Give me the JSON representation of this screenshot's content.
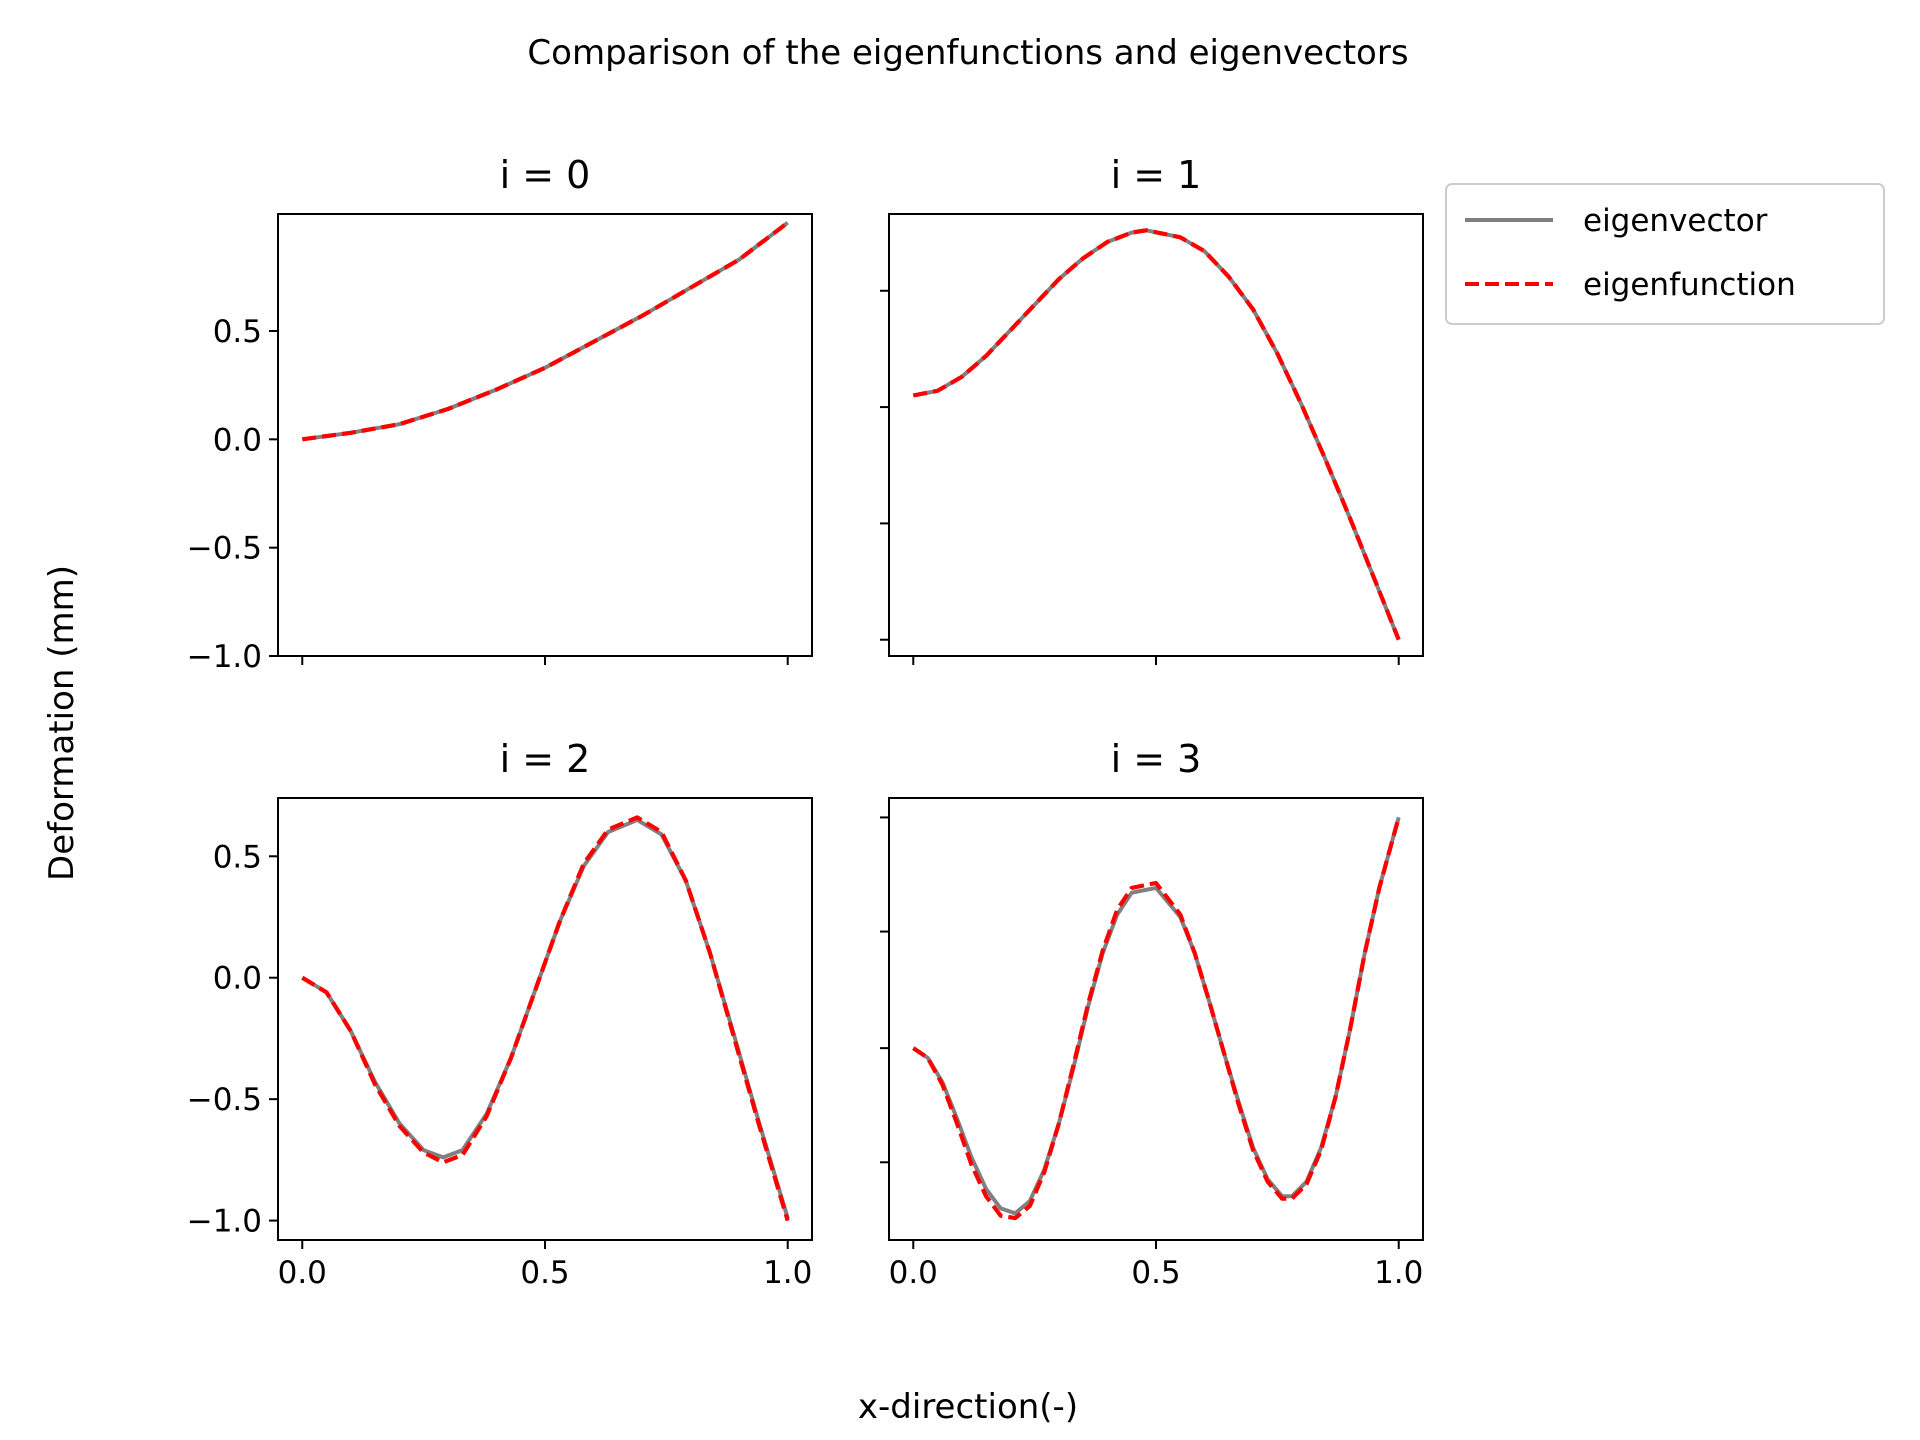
{
  "figure": {
    "suptitle": "Comparison of the eigenfunctions and eigenvectors",
    "xlabel": "x-direction(-)",
    "ylabel": "Deformation (mm)"
  },
  "legend": {
    "position": "upper-right-outside",
    "entries": [
      {
        "label": "eigenvector",
        "color": "#808080",
        "style": "solid"
      },
      {
        "label": "eigenfunction",
        "color": "#ff0000",
        "style": "dashed"
      }
    ]
  },
  "chart_data": [
    {
      "type": "line",
      "title": "i = 0",
      "xlim": [
        -0.05,
        1.05
      ],
      "ylim": [
        -1.0,
        1.04
      ],
      "xticks": [
        "0.0",
        "0.5",
        "1.0"
      ],
      "xtick_values": [
        0,
        0.5,
        1
      ],
      "xtick_labels_shown": false,
      "yticks": [
        "0.5",
        "0.0",
        "−0.5",
        "−1.0"
      ],
      "ytick_values": [
        0.5,
        0,
        -0.5,
        -1.0
      ],
      "ytick_labels_shown": true,
      "series": [
        {
          "name": "eigenvector",
          "color": "#808080",
          "style": "solid",
          "x": [
            0,
            0.1,
            0.2,
            0.3,
            0.4,
            0.5,
            0.6,
            0.7,
            0.8,
            0.9,
            1.0
          ],
          "y": [
            0,
            0.03,
            0.07,
            0.14,
            0.23,
            0.33,
            0.45,
            0.57,
            0.7,
            0.83,
            1.0
          ]
        },
        {
          "name": "eigenfunction",
          "color": "#ff0000",
          "style": "dashed",
          "x": [
            0,
            0.1,
            0.2,
            0.3,
            0.4,
            0.5,
            0.6,
            0.7,
            0.8,
            0.9,
            1.0
          ],
          "y": [
            0,
            0.03,
            0.07,
            0.14,
            0.23,
            0.33,
            0.45,
            0.57,
            0.7,
            0.83,
            1.0
          ]
        }
      ]
    },
    {
      "type": "line",
      "title": "i = 1",
      "xlim": [
        -0.05,
        1.05
      ],
      "ylim": [
        -0.95,
        0.95
      ],
      "xticks": [
        "0.0",
        "0.5",
        "1.0"
      ],
      "xtick_values": [
        0,
        0.5,
        1
      ],
      "xtick_labels_shown": false,
      "yticks": [],
      "ytick_values": [
        0.62,
        0.12,
        -0.38,
        -0.88
      ],
      "ytick_labels_shown": false,
      "series": [
        {
          "name": "eigenvector",
          "color": "#808080",
          "style": "solid",
          "x": [
            0,
            0.05,
            0.1,
            0.15,
            0.2,
            0.25,
            0.3,
            0.35,
            0.4,
            0.45,
            0.48,
            0.55,
            0.6,
            0.65,
            0.7,
            0.75,
            0.8,
            0.85,
            0.9,
            0.95,
            1.0
          ],
          "y": [
            0.17,
            0.19,
            0.25,
            0.34,
            0.45,
            0.56,
            0.67,
            0.76,
            0.83,
            0.87,
            0.88,
            0.85,
            0.79,
            0.68,
            0.54,
            0.35,
            0.13,
            -0.11,
            -0.36,
            -0.62,
            -0.88
          ]
        },
        {
          "name": "eigenfunction",
          "color": "#ff0000",
          "style": "dashed",
          "x": [
            0,
            0.05,
            0.1,
            0.15,
            0.2,
            0.25,
            0.3,
            0.35,
            0.4,
            0.45,
            0.48,
            0.55,
            0.6,
            0.65,
            0.7,
            0.75,
            0.8,
            0.85,
            0.9,
            0.95,
            1.0
          ],
          "y": [
            0.17,
            0.19,
            0.25,
            0.34,
            0.45,
            0.56,
            0.67,
            0.76,
            0.83,
            0.87,
            0.88,
            0.85,
            0.79,
            0.68,
            0.54,
            0.35,
            0.13,
            -0.11,
            -0.36,
            -0.62,
            -0.88
          ]
        }
      ]
    },
    {
      "type": "line",
      "title": "i = 2",
      "xlim": [
        -0.05,
        1.05
      ],
      "ylim": [
        -1.08,
        0.74
      ],
      "xticks": [
        "0.0",
        "0.5",
        "1.0"
      ],
      "xtick_values": [
        0,
        0.5,
        1
      ],
      "xtick_labels_shown": true,
      "yticks": [
        "0.5",
        "0.0",
        "−0.5",
        "−1.0"
      ],
      "ytick_values": [
        0.5,
        0,
        -0.5,
        -1.0
      ],
      "ytick_labels_shown": true,
      "series": [
        {
          "name": "eigenvector",
          "color": "#808080",
          "style": "solid",
          "x": [
            0,
            0.05,
            0.1,
            0.15,
            0.2,
            0.25,
            0.29,
            0.33,
            0.38,
            0.43,
            0.48,
            0.53,
            0.58,
            0.63,
            0.69,
            0.74,
            0.79,
            0.84,
            0.89,
            0.94,
            1.0
          ],
          "y": [
            0,
            -0.06,
            -0.22,
            -0.43,
            -0.6,
            -0.71,
            -0.74,
            -0.71,
            -0.56,
            -0.33,
            -0.05,
            0.23,
            0.46,
            0.6,
            0.65,
            0.59,
            0.4,
            0.1,
            -0.24,
            -0.59,
            -0.99
          ]
        },
        {
          "name": "eigenfunction",
          "color": "#ff0000",
          "style": "dashed",
          "x": [
            0,
            0.05,
            0.1,
            0.15,
            0.2,
            0.25,
            0.29,
            0.33,
            0.38,
            0.43,
            0.48,
            0.53,
            0.58,
            0.63,
            0.69,
            0.74,
            0.79,
            0.84,
            0.89,
            0.94,
            1.0
          ],
          "y": [
            0,
            -0.06,
            -0.22,
            -0.44,
            -0.61,
            -0.72,
            -0.76,
            -0.73,
            -0.57,
            -0.33,
            -0.05,
            0.23,
            0.47,
            0.61,
            0.66,
            0.6,
            0.4,
            0.1,
            -0.25,
            -0.6,
            -1.0
          ]
        }
      ]
    },
    {
      "type": "line",
      "title": "i = 3",
      "xlim": [
        -0.05,
        1.05
      ],
      "ylim": [
        -1.08,
        0.74
      ],
      "xticks": [
        "0.0",
        "0.5",
        "1.0"
      ],
      "xtick_values": [
        0,
        0.5,
        1
      ],
      "xtick_labels_shown": true,
      "yticks": [],
      "ytick_values": [
        0.66,
        0.19,
        -0.29,
        -0.76
      ],
      "ytick_labels_shown": false,
      "series": [
        {
          "name": "eigenvector",
          "color": "#808080",
          "style": "solid",
          "x": [
            0,
            0.03,
            0.06,
            0.09,
            0.12,
            0.15,
            0.18,
            0.21,
            0.24,
            0.27,
            0.3,
            0.33,
            0.36,
            0.39,
            0.42,
            0.45,
            0.5,
            0.55,
            0.58,
            0.61,
            0.64,
            0.67,
            0.7,
            0.73,
            0.76,
            0.78,
            0.81,
            0.84,
            0.87,
            0.9,
            0.93,
            0.96,
            1.0
          ],
          "y": [
            -0.29,
            -0.33,
            -0.43,
            -0.58,
            -0.74,
            -0.87,
            -0.95,
            -0.97,
            -0.92,
            -0.79,
            -0.6,
            -0.37,
            -0.12,
            0.1,
            0.26,
            0.35,
            0.37,
            0.25,
            0.1,
            -0.1,
            -0.31,
            -0.51,
            -0.7,
            -0.83,
            -0.9,
            -0.9,
            -0.84,
            -0.7,
            -0.49,
            -0.21,
            0.1,
            0.37,
            0.66
          ]
        },
        {
          "name": "eigenfunction",
          "color": "#ff0000",
          "style": "dashed",
          "x": [
            0,
            0.03,
            0.06,
            0.09,
            0.12,
            0.15,
            0.18,
            0.21,
            0.24,
            0.27,
            0.3,
            0.33,
            0.36,
            0.39,
            0.42,
            0.45,
            0.5,
            0.55,
            0.58,
            0.61,
            0.64,
            0.67,
            0.7,
            0.73,
            0.76,
            0.78,
            0.81,
            0.84,
            0.87,
            0.9,
            0.93,
            0.96,
            1.0
          ],
          "y": [
            -0.29,
            -0.33,
            -0.44,
            -0.6,
            -0.77,
            -0.9,
            -0.98,
            -0.99,
            -0.94,
            -0.8,
            -0.6,
            -0.36,
            -0.11,
            0.11,
            0.28,
            0.37,
            0.39,
            0.26,
            0.1,
            -0.1,
            -0.31,
            -0.52,
            -0.71,
            -0.84,
            -0.91,
            -0.91,
            -0.85,
            -0.71,
            -0.49,
            -0.21,
            0.1,
            0.37,
            0.66
          ]
        }
      ]
    }
  ]
}
